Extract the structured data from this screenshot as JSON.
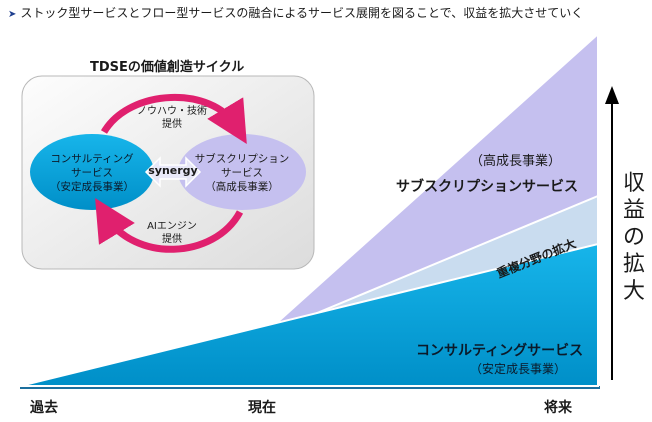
{
  "heading": {
    "bullet": "➤",
    "text": "ストック型サービスとフロー型サービスの融合によるサービス展開を図ることで、収益を拡大させていく"
  },
  "cycle": {
    "title": "TDSEの価値創造サイクル",
    "consulting": {
      "line1": "コンサルティング",
      "line2": "サービス",
      "line3": "（安定成長事業）",
      "color": "#00a3d9"
    },
    "subscription": {
      "line1": "サブスクリプション",
      "line2": "サービス",
      "line3": "（高成長事業）",
      "color": "#c5c0ef"
    },
    "synergy": "synergy",
    "top_flow": {
      "line1": "ノウハウ・技術",
      "line2": "提供"
    },
    "bottom_flow": {
      "line1": "AIエンジン",
      "line2": "提供"
    },
    "arrow_color": "#e0206e"
  },
  "chart": {
    "subscription": {
      "sub": "（高成長事業）",
      "name": "サブスクリプションサービス",
      "color": "#c5c0ef"
    },
    "overlap": {
      "name": "重複分野の拡大",
      "color": "#c9dcef"
    },
    "consulting": {
      "name": "コンサルティングサービス",
      "sub": "（安定成長事業）",
      "color": "#00a3d9"
    },
    "axis_label": [
      "収",
      "益",
      "の",
      "拡",
      "大"
    ],
    "timeline": {
      "past": "過去",
      "present": "現在",
      "future": "将来"
    }
  }
}
